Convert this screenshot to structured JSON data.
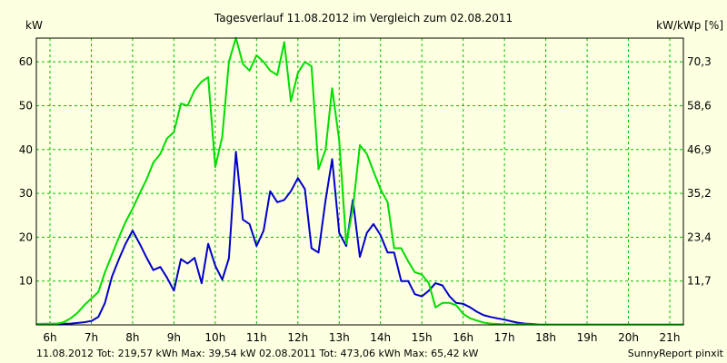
{
  "chart_data": {
    "type": "line",
    "title": "Tagesverlauf 11.08.2012 im Vergleich zum 02.08.2011",
    "ylabel_left": "kW",
    "ylabel_right": "kW/kWp [%]",
    "ylim": [
      0,
      65.42
    ],
    "y_ticks_left": [
      "10",
      "20",
      "30",
      "40",
      "50",
      "60"
    ],
    "y_ticks_right": [
      "11,7",
      "23,4",
      "35,2",
      "46,9",
      "58,6",
      "70,3"
    ],
    "x_range": [
      5.67,
      21.33
    ],
    "x_ticks": [
      "6h",
      "7h",
      "8h",
      "9h",
      "10h",
      "11h",
      "12h",
      "13h",
      "14h",
      "15h",
      "16h",
      "17h",
      "18h",
      "19h",
      "20h",
      "21h"
    ],
    "grid": true,
    "series": [
      {
        "name": "11.08.2012",
        "color": "#0000cc",
        "x": [
          5.67,
          6.5,
          6.83,
          7.0,
          7.17,
          7.33,
          7.5,
          7.67,
          7.83,
          8.0,
          8.17,
          8.33,
          8.5,
          8.67,
          8.83,
          9.0,
          9.17,
          9.33,
          9.5,
          9.67,
          9.83,
          10.0,
          10.17,
          10.33,
          10.5,
          10.67,
          10.83,
          11.0,
          11.17,
          11.33,
          11.5,
          11.67,
          11.83,
          12.0,
          12.17,
          12.33,
          12.5,
          12.67,
          12.83,
          13.0,
          13.17,
          13.33,
          13.5,
          13.67,
          13.83,
          14.0,
          14.17,
          14.33,
          14.5,
          14.67,
          14.83,
          15.0,
          15.17,
          15.33,
          15.5,
          15.67,
          15.83,
          16.0,
          16.17,
          16.33,
          16.5,
          16.67,
          16.83,
          17.0,
          17.17,
          17.33,
          17.5,
          17.67,
          17.83,
          18.0,
          18.17,
          18.33,
          18.5,
          18.67,
          18.83,
          19.0,
          19.17,
          19.33,
          19.5,
          19.67,
          19.83,
          20.0,
          20.17,
          20.33,
          20.5,
          20.67,
          20.83,
          21.0,
          21.33
        ],
        "y": [
          0.2,
          0.3,
          0.6,
          0.9,
          1.8,
          5.0,
          11.0,
          15.0,
          18.5,
          21.5,
          18.5,
          15.5,
          12.5,
          13.2,
          10.8,
          7.8,
          15.0,
          14.0,
          15.3,
          9.5,
          18.5,
          13.5,
          10.3,
          15.2,
          39.5,
          24.0,
          23.0,
          18.0,
          21.5,
          30.5,
          28.0,
          28.5,
          30.5,
          33.5,
          31.0,
          17.5,
          16.5,
          28.5,
          37.8,
          21.0,
          18.0,
          28.5,
          15.5,
          21.0,
          23.0,
          20.5,
          16.5,
          16.5,
          10.0,
          10.0,
          7.0,
          6.5,
          7.8,
          9.5,
          9.0,
          6.5,
          5.0,
          4.8,
          4.0,
          3.0,
          2.2,
          1.8,
          1.5,
          1.2,
          0.8,
          0.5,
          0.3,
          0.2,
          0.1,
          0.1,
          0.1,
          0.1,
          0.1,
          0.1,
          0.1,
          0.1,
          0.1,
          0.1,
          0.1,
          0.1,
          0.1,
          0.1,
          0.1,
          0.1,
          0.1,
          0.1,
          0.1,
          0.1,
          0.1
        ]
      },
      {
        "name": "02.08.2011",
        "color": "#00dd00",
        "x": [
          5.67,
          6.17,
          6.33,
          6.5,
          6.67,
          6.83,
          7.0,
          7.17,
          7.33,
          7.5,
          7.67,
          7.83,
          8.0,
          8.17,
          8.33,
          8.5,
          8.67,
          8.83,
          9.0,
          9.17,
          9.33,
          9.5,
          9.67,
          9.83,
          10.0,
          10.17,
          10.33,
          10.5,
          10.67,
          10.83,
          11.0,
          11.17,
          11.33,
          11.5,
          11.67,
          11.83,
          12.0,
          12.17,
          12.33,
          12.5,
          12.67,
          12.83,
          13.0,
          13.17,
          13.33,
          13.5,
          13.67,
          13.83,
          14.0,
          14.17,
          14.33,
          14.5,
          14.67,
          14.83,
          15.0,
          15.17,
          15.33,
          15.5,
          15.67,
          15.83,
          16.0,
          16.17,
          16.33,
          16.5,
          16.67,
          16.83,
          17.0,
          17.17,
          17.33,
          17.5,
          17.67,
          17.83,
          18.0,
          18.17,
          18.33,
          18.5,
          18.67,
          18.83,
          19.0,
          19.17,
          19.33,
          19.5,
          19.67,
          19.83,
          20.0,
          20.17,
          20.33,
          20.5,
          20.67,
          20.83,
          21.0,
          21.33
        ],
        "y": [
          0.2,
          0.3,
          0.6,
          1.5,
          2.8,
          4.5,
          6.0,
          7.5,
          12.0,
          16.0,
          20.0,
          23.5,
          26.5,
          30.0,
          33.0,
          37.0,
          39.0,
          42.5,
          44.0,
          50.5,
          50.0,
          53.5,
          55.5,
          56.5,
          36.0,
          43.0,
          60.0,
          65.5,
          59.5,
          58.0,
          61.5,
          60.0,
          58.0,
          57.0,
          64.5,
          51.0,
          57.5,
          60.0,
          59.0,
          35.5,
          40.0,
          54.0,
          42.0,
          18.5,
          26.5,
          41.0,
          39.0,
          35.0,
          31.0,
          28.0,
          17.5,
          17.5,
          14.5,
          12.0,
          11.5,
          9.5,
          4.0,
          5.0,
          5.0,
          4.5,
          2.5,
          1.5,
          1.0,
          0.5,
          0.3,
          0.2,
          0.1,
          0.1,
          0.1,
          0.1,
          0.1,
          0.1,
          0.1,
          0.1,
          0.1,
          0.1,
          0.1,
          0.1,
          0.1,
          0.1,
          0.1,
          0.1,
          0.1,
          0.1,
          0.1,
          0.1,
          0.1,
          0.1,
          0.1,
          0.1,
          0.1,
          0.1
        ]
      }
    ]
  },
  "footer": {
    "legend_text": "11.08.2012 Tot: 219,57 kWh Max: 39,54 kW 02.08.2011 Tot: 473,06 kWh Max: 65,42 kW",
    "credit": "SunnyReport pinxit"
  },
  "colors": {
    "background": "#ffffe1",
    "grid": "#00c000",
    "axis": "#000000"
  }
}
